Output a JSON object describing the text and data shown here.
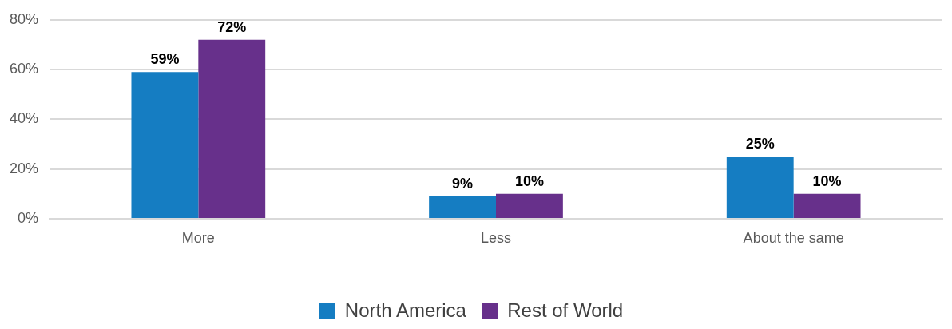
{
  "chart_data": {
    "type": "bar",
    "categories": [
      "More",
      "Less",
      "About the same"
    ],
    "series": [
      {
        "name": "North America",
        "color": "#157dc2",
        "values": [
          59,
          9,
          25
        ],
        "value_labels": [
          "59%",
          "9%",
          "25%"
        ]
      },
      {
        "name": "Rest of World",
        "color": "#67308b",
        "values": [
          72,
          10,
          10
        ],
        "value_labels": [
          "72%",
          "10%",
          "10%"
        ]
      }
    ],
    "ylim": [
      0,
      80
    ],
    "yticks": [
      {
        "value": 0,
        "label": "0%"
      },
      {
        "value": 20,
        "label": "20%"
      },
      {
        "value": 40,
        "label": "40%"
      },
      {
        "value": 60,
        "label": "60%"
      },
      {
        "value": 80,
        "label": "80%"
      }
    ],
    "grid": "y",
    "legend": "bottom"
  }
}
